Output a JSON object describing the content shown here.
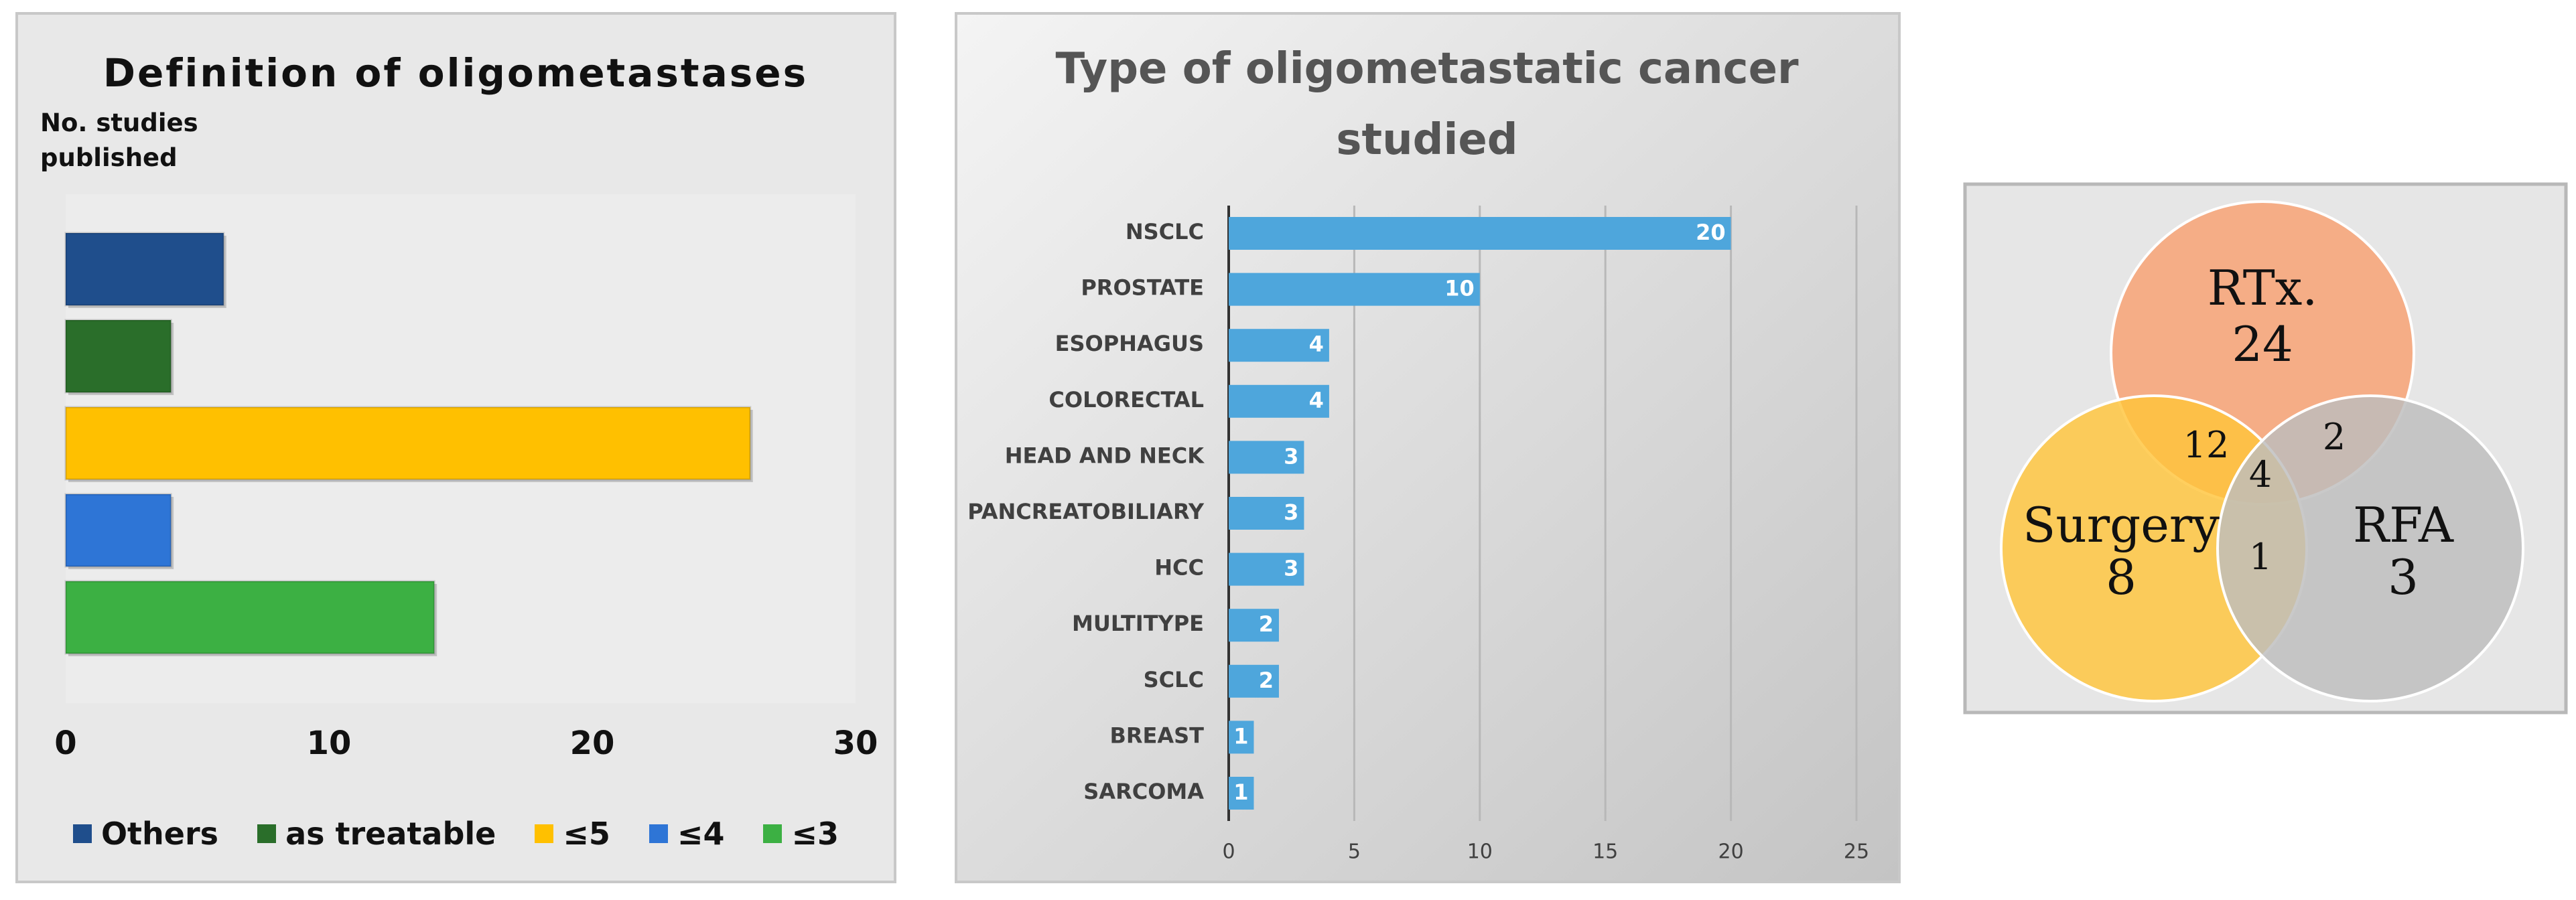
{
  "chart_data": [
    {
      "type": "bar",
      "title": "Definition of oligometastases",
      "y_label": "No. studies published",
      "series": [
        {
          "name": "Others",
          "color": "#1f4e8c",
          "values": [
            6
          ]
        },
        {
          "name": "as treatable",
          "color": "#2a6e2a",
          "values": [
            4
          ]
        },
        {
          "name": "≤5",
          "color": "#ffc000",
          "values": [
            26
          ]
        },
        {
          "name": "≤4",
          "color": "#2e75d6",
          "values": [
            4
          ]
        },
        {
          "name": "≤3",
          "color": "#3cb043",
          "values": [
            14
          ]
        }
      ],
      "xlim": [
        0,
        30
      ],
      "xticks": [
        0,
        10,
        20,
        30
      ]
    },
    {
      "type": "bar",
      "title": "Type of oligometastatic cancer studied",
      "categories": [
        "NSCLC",
        "PROSTATE",
        "ESOPHAGUS",
        "COLORECTAL",
        "HEAD AND NECK",
        "PANCREATOBILIARY",
        "HCC",
        "MULTITYPE",
        "SCLC",
        "BREAST",
        "SARCOMA"
      ],
      "values": [
        20,
        10,
        4,
        4,
        3,
        3,
        3,
        2,
        2,
        1,
        1
      ],
      "color": "#4ea6dc",
      "xlim": [
        0,
        25
      ],
      "xticks": [
        0,
        5,
        10,
        15,
        20,
        25
      ],
      "grid": true
    },
    {
      "type": "venn",
      "sets": [
        {
          "name": "RTx.",
          "value": 24,
          "color": "#f8a070"
        },
        {
          "name": "Surgery",
          "value": 8,
          "color": "#ffc43a"
        },
        {
          "name": "RFA",
          "value": 3,
          "color": "#bdbdbd"
        }
      ],
      "overlaps": [
        12,
        2,
        4,
        1
      ]
    }
  ]
}
